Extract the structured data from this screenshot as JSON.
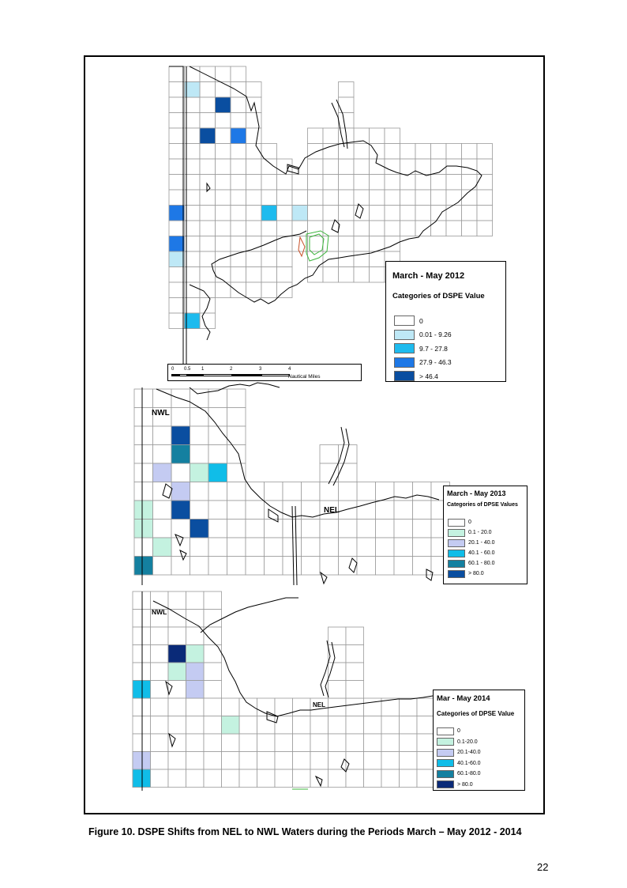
{
  "figure": {
    "caption": "Figure 10.  DSPE Shifts from NEL to NWL Waters during the Periods March – May 2012 - 2014",
    "page_number": "22"
  },
  "maps": [
    {
      "period": "March - May 2012",
      "legend_title": "March - May 2012",
      "legend_subtitle": "Categories of DSPE Value",
      "legend_items": [
        {
          "label": "0",
          "color": "#ffffff"
        },
        {
          "label": "0.01 - 9.26",
          "color": "#bee8f6"
        },
        {
          "label": "9.7 - 27.8",
          "color": "#1ebbee"
        },
        {
          "label": "27.9 - 46.3",
          "color": "#1e78e6"
        },
        {
          "label": "> 46.4",
          "color": "#0a4ea0"
        }
      ],
      "scale_bar": {
        "ticks": [
          "0",
          "0.5",
          "1",
          "2",
          "3",
          "4"
        ],
        "unit": "Nautical Miles"
      },
      "area_labels": []
    },
    {
      "period": "March - May 2013",
      "legend_title": "March - May 2013",
      "legend_subtitle": "Categories of DPSE Values",
      "legend_items": [
        {
          "label": "0",
          "color": "#ffffff"
        },
        {
          "label": "0.1 - 20.0",
          "color": "#c4f2e0"
        },
        {
          "label": "20.1 - 40.0",
          "color": "#c4cbf2"
        },
        {
          "label": "40.1 - 60.0",
          "color": "#10bde8"
        },
        {
          "label": "60.1 - 80.0",
          "color": "#1480a0"
        },
        {
          "label": "> 80.0",
          "color": "#0a4ea0"
        }
      ],
      "area_labels": [
        "NWL",
        "NEL"
      ]
    },
    {
      "period": "Mar - May 2014",
      "legend_title": "Mar - May 2014",
      "legend_subtitle": "Categories of DPSE Value",
      "legend_items": [
        {
          "label": "0",
          "color": "#ffffff"
        },
        {
          "label": "0.1-20.0",
          "color": "#c4f2e0"
        },
        {
          "label": "20.1-40.0",
          "color": "#c4cbf2"
        },
        {
          "label": "40.1-60.0",
          "color": "#10bde8"
        },
        {
          "label": "60.1-80.0",
          "color": "#1480a0"
        },
        {
          "label": "> 80.0",
          "color": "#0a2a78"
        }
      ],
      "area_labels": [
        "NWL",
        "NEL"
      ]
    }
  ]
}
